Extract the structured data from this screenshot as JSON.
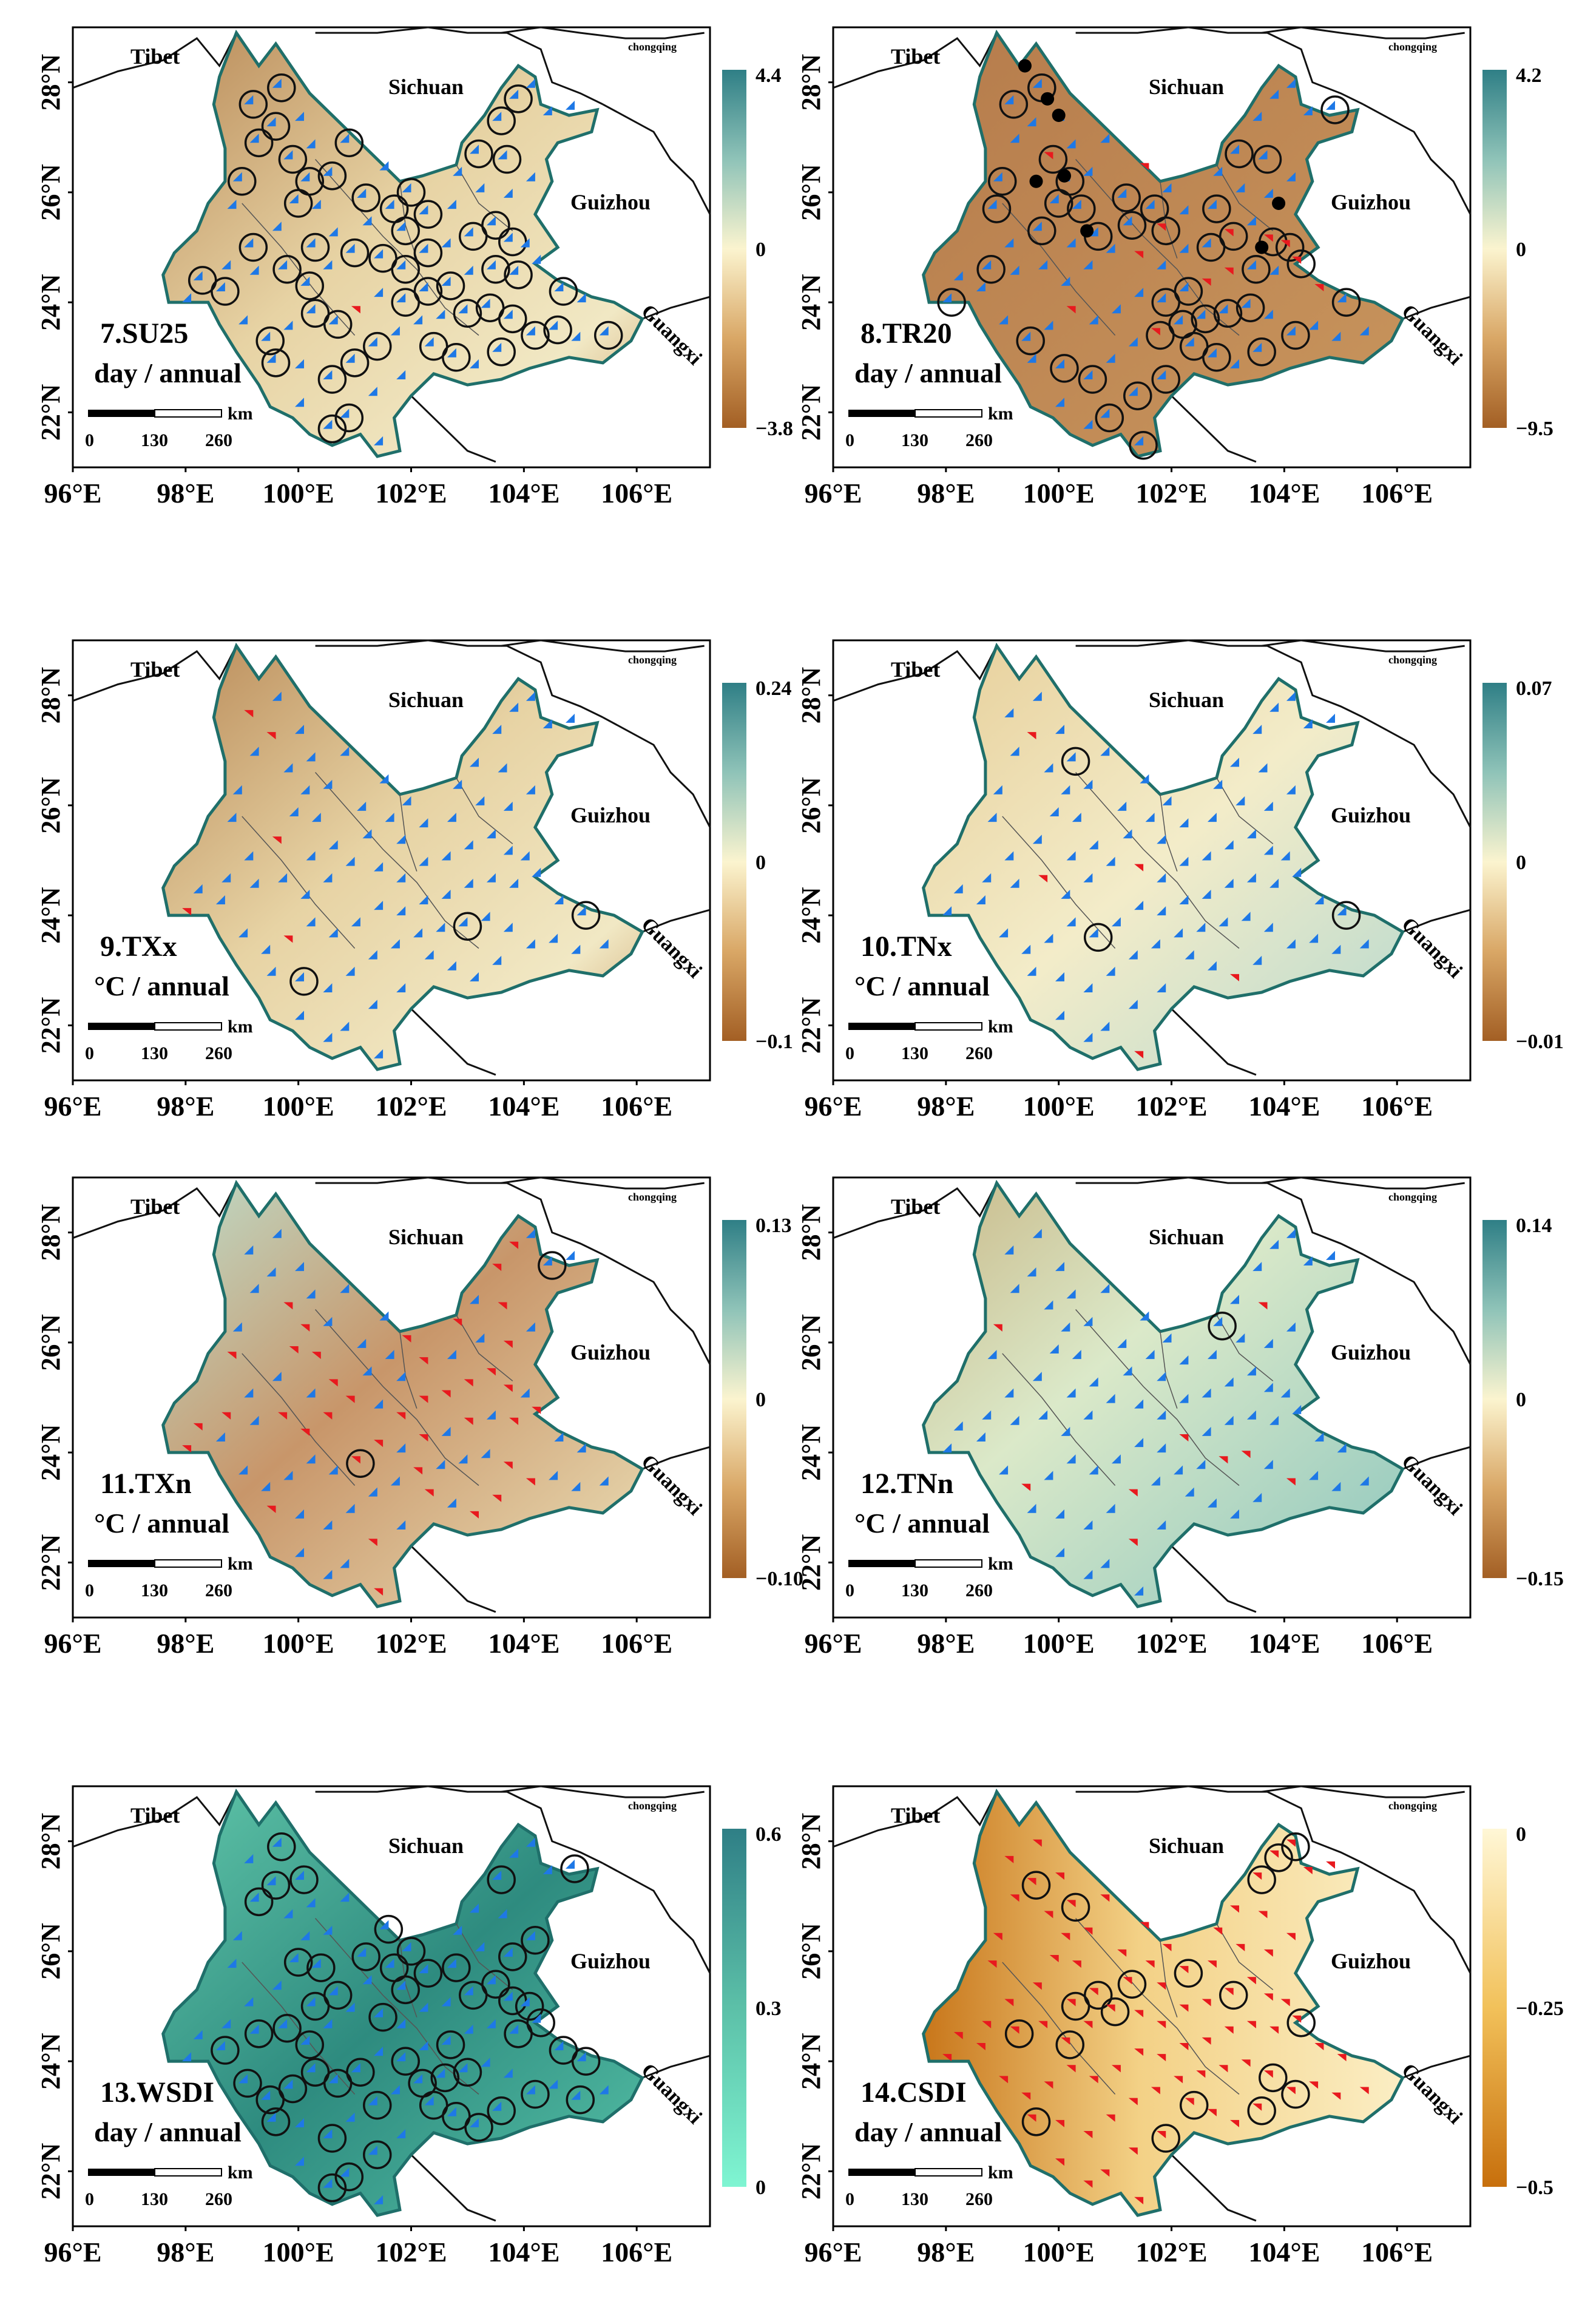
{
  "figure": {
    "lon_ticks": [
      "96°E",
      "98°E",
      "100°E",
      "102°E",
      "104°E",
      "106°E"
    ],
    "lat_ticks": [
      "22°N",
      "24°N",
      "26°N",
      "28°N"
    ],
    "place_labels": {
      "tibet": "Tibet",
      "sichuan": "Sichuan",
      "chongqing": "chongqing",
      "guizhou": "Guizhou",
      "guangxi": "Guangxi"
    },
    "scalebar": {
      "unit": "km",
      "ticks": [
        "0",
        "130",
        "260"
      ]
    },
    "colors": {
      "up": "#1e78e6",
      "down": "#e8191e",
      "outline": "#1f6f6a",
      "border": "#111111",
      "dot": "#000000"
    }
  },
  "chart_data": [
    {
      "type": "map",
      "id": "7",
      "label": "7.SU25",
      "units": "day / annual",
      "cbar_max": "4.4",
      "cbar_mid": "0",
      "cbar_min": "−3.8",
      "palette": "teal-cream-brown",
      "relief": "brownish",
      "sig_circles": "many",
      "trend_up_share": 0.97,
      "notes": "mostly increasing, circles = significant"
    },
    {
      "type": "map",
      "id": "8",
      "label": "8.TR20",
      "units": "day / annual",
      "cbar_max": "4.2",
      "cbar_mid": "0",
      "cbar_min": "−9.5",
      "palette": "teal-cream-brown",
      "relief": "brown",
      "sig_circles": "many",
      "trend_up_share": 0.9,
      "black_dots": 8
    },
    {
      "type": "map",
      "id": "9",
      "label": "9.TXx",
      "units": "°C / annual",
      "cbar_max": "0.24",
      "cbar_mid": "0",
      "cbar_min": "−0.1",
      "palette": "teal-cream-brown",
      "relief": "brownish",
      "sig_circles": "few",
      "trend_up_share": 0.93
    },
    {
      "type": "map",
      "id": "10",
      "label": "10.TNx",
      "units": "°C / annual",
      "cbar_max": "0.07",
      "cbar_mid": "0",
      "cbar_min": "−0.01",
      "palette": "teal-cream-brown",
      "relief": "light-teal",
      "sig_circles": "few",
      "trend_up_share": 0.97
    },
    {
      "type": "map",
      "id": "11",
      "label": "11.TXn",
      "units": "°C / annual",
      "cbar_max": "0.13",
      "cbar_mid": "0",
      "cbar_min": "−0.10",
      "palette": "teal-cream-brown",
      "relief": "mixed",
      "sig_circles": "few",
      "trend_up_share": 0.55
    },
    {
      "type": "map",
      "id": "12",
      "label": "12.TNn",
      "units": "°C / annual",
      "cbar_max": "0.14",
      "cbar_mid": "0",
      "cbar_min": "−0.15",
      "palette": "teal-cream-brown",
      "relief": "teal",
      "sig_circles": "few",
      "trend_up_share": 0.9
    },
    {
      "type": "map",
      "id": "13",
      "label": "13.WSDI",
      "units": "day / annual",
      "cbar_max": "0.6",
      "cbar_mid": "0.3",
      "cbar_min": "0",
      "palette": "aqua-teal",
      "relief": "teal",
      "sig_circles": "many",
      "trend_up_share": 1.0
    },
    {
      "type": "map",
      "id": "14",
      "label": "14.CSDI",
      "units": "day / annual",
      "cbar_max": "0",
      "cbar_mid": "−0.25",
      "cbar_min": "−0.5",
      "palette": "cream-orange",
      "relief": "orange",
      "sig_circles": "some",
      "trend_up_share": 0.0
    }
  ]
}
